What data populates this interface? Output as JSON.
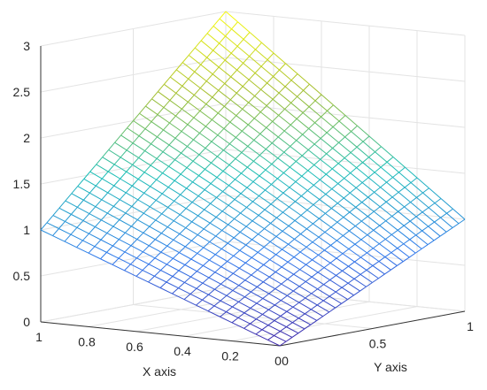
{
  "chart_data": {
    "type": "surface",
    "title": "",
    "xlabel": "X axis",
    "ylabel": "Y axis",
    "zlabel": "",
    "xlim": [
      0,
      1
    ],
    "ylim": [
      0,
      1
    ],
    "zlim": [
      0,
      3
    ],
    "x_ticks": [
      "0",
      "0.2",
      "0.4",
      "0.6",
      "0.8",
      "1"
    ],
    "y_ticks": [
      "0",
      "0.5",
      "1"
    ],
    "z_ticks": [
      "0",
      "0.5",
      "1",
      "1.5",
      "2",
      "2.5",
      "3"
    ],
    "mesh": {
      "x_lines": 21,
      "y_lines": 31
    },
    "corner_values": [
      {
        "x": 0,
        "y": 0,
        "z": 0
      },
      {
        "x": 1,
        "y": 0,
        "z": 1.0
      },
      {
        "x": 0,
        "y": 1,
        "z": 1.0
      },
      {
        "x": 1,
        "y": 1,
        "z": 3.0
      }
    ],
    "surface": "z = x*y + x*(1-y)*1.0 + (1-x)*y*1.0 + 0.0*(1-x)*(1-y), with extra x*y term giving peak 3 at (1,1)",
    "grid": true,
    "colormap": "parula",
    "color_range": [
      "#3e26a8",
      "#f9fb0e"
    ]
  }
}
